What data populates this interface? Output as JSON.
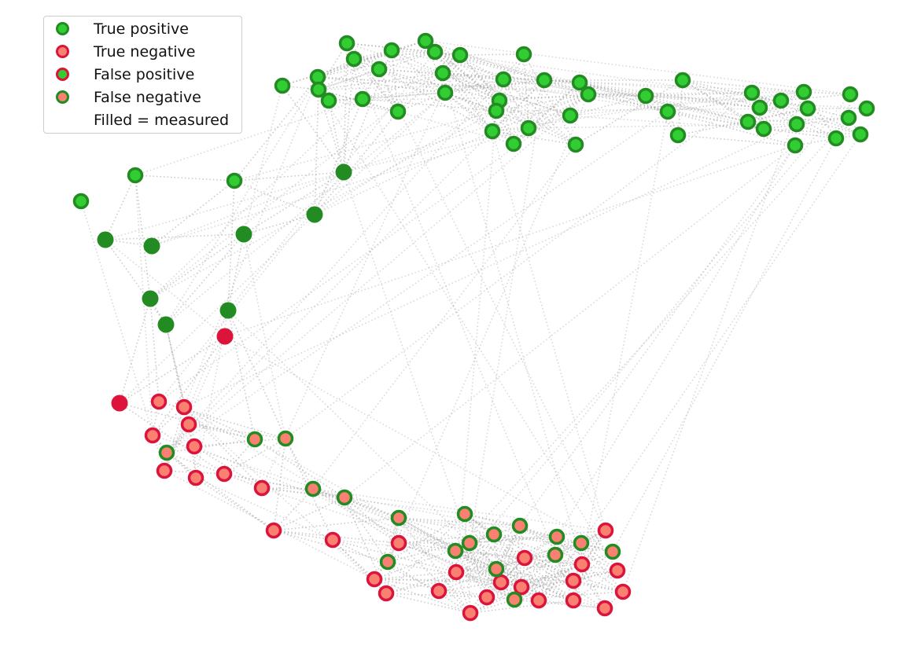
{
  "legend": {
    "true_positive": "True positive",
    "true_negative": "True negative",
    "false_positive": "False positive",
    "false_negative": "False negative",
    "filled_note": "Filled = measured"
  },
  "colors": {
    "positive_edge": "#228b22",
    "positive_fill": "#32cd32",
    "negative_edge": "#dc143c",
    "negative_fill": "#fa8072",
    "edge_line": "#9e9e9e"
  }
}
